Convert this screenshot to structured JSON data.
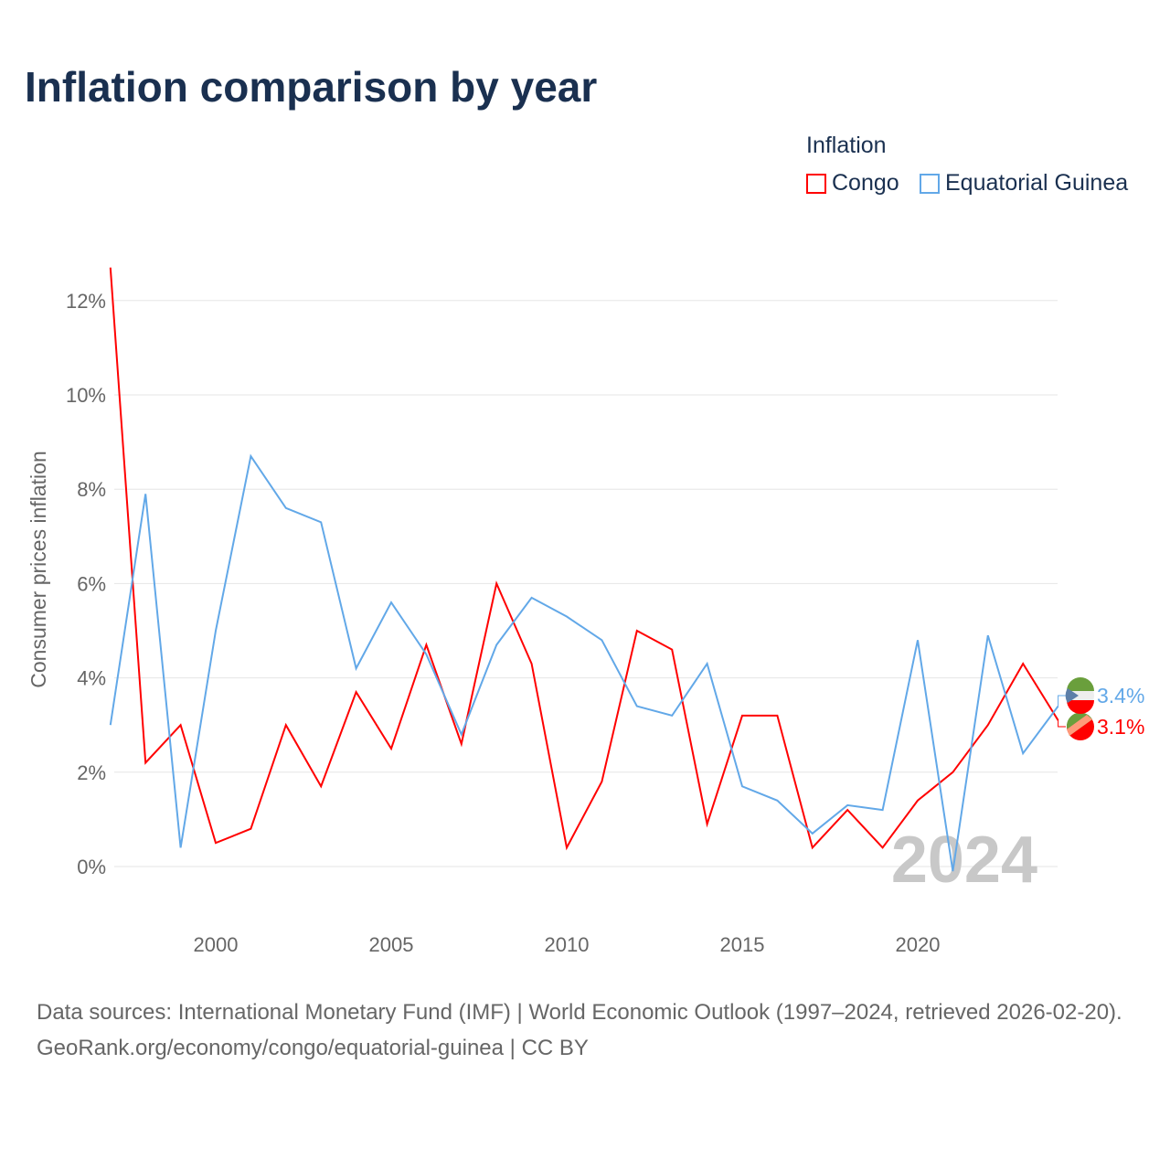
{
  "title": "Inflation comparison by year",
  "legend": {
    "title": "Inflation",
    "items": [
      {
        "name": "Congo",
        "color": "#ff0000"
      },
      {
        "name": "Equatorial Guinea",
        "color": "#62a8e8"
      }
    ]
  },
  "footer": {
    "line1": "Data sources: International Monetary Fund (IMF) | World Economic Outlook (1997–2024, retrieved 2026-02-20).",
    "line2": "GeoRank.org/economy/congo/equatorial-guinea | CC BY"
  },
  "chart_data": {
    "type": "line",
    "ylabel": "Consumer prices inflation",
    "year_watermark": "2024",
    "ylim": [
      -1.2,
      12.7
    ],
    "yticks": [
      0,
      2,
      4,
      6,
      8,
      10,
      12
    ],
    "ytick_labels": [
      "0%",
      "2%",
      "4%",
      "6%",
      "8%",
      "10%",
      "12%"
    ],
    "xticks": [
      2000,
      2005,
      2010,
      2015,
      2020
    ],
    "x": [
      1997,
      1998,
      1999,
      2000,
      2001,
      2002,
      2003,
      2004,
      2005,
      2006,
      2007,
      2008,
      2009,
      2010,
      2011,
      2012,
      2013,
      2014,
      2015,
      2016,
      2017,
      2018,
      2019,
      2020,
      2021,
      2022,
      2023,
      2024
    ],
    "series": [
      {
        "name": "Congo",
        "color": "#ff0000",
        "end_label": "3.1%",
        "values": [
          12.7,
          2.2,
          3.0,
          0.5,
          0.8,
          3.0,
          1.7,
          3.7,
          2.5,
          4.7,
          2.6,
          6.0,
          4.3,
          0.4,
          1.8,
          5.0,
          4.6,
          0.9,
          3.2,
          3.2,
          0.4,
          1.2,
          0.4,
          1.4,
          2.0,
          3.0,
          4.3,
          3.1
        ]
      },
      {
        "name": "Equatorial Guinea",
        "color": "#62a8e8",
        "end_label": "3.4%",
        "values": [
          3.0,
          7.9,
          0.4,
          5.0,
          8.7,
          7.6,
          7.3,
          4.2,
          5.6,
          4.5,
          2.8,
          4.7,
          5.7,
          5.3,
          4.8,
          3.4,
          3.2,
          4.3,
          1.7,
          1.4,
          0.7,
          1.3,
          1.2,
          4.8,
          -0.1,
          4.9,
          2.4,
          3.4
        ]
      }
    ]
  }
}
